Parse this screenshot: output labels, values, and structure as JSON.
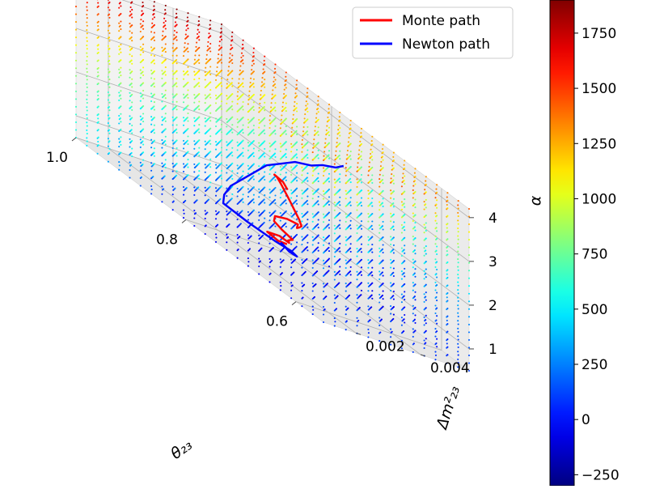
{
  "chart_data": {
    "type": "scatter",
    "projection": "3d",
    "title": "",
    "axes": {
      "x": {
        "label": "θ₂₃",
        "range": [
          0.55,
          1.0
        ],
        "ticks": [
          "0.6",
          "0.8",
          "1.0"
        ],
        "tick_values": [
          0.6,
          0.8,
          1.0
        ]
      },
      "y": {
        "label": "Δm²₂₃",
        "range": [
          0.001,
          0.0055
        ],
        "ticks": [
          "0.002",
          "0.004"
        ],
        "tick_values": [
          0.002,
          0.004
        ]
      },
      "z": {
        "label": "α",
        "range": [
          0.5,
          4.2
        ],
        "ticks": [
          "1",
          "2",
          "3",
          "4"
        ],
        "tick_values": [
          1,
          2,
          3,
          4
        ]
      }
    },
    "grid": true,
    "colorbar": {
      "colormap": "jet",
      "range": [
        -300,
        1900
      ],
      "ticks": [
        "−250",
        "0",
        "250",
        "500",
        "750",
        "1000",
        "1250",
        "1500",
        "1750"
      ],
      "tick_values": [
        -250,
        0,
        250,
        500,
        750,
        1000,
        1250,
        1500,
        1750
      ]
    },
    "legend": {
      "placement": "top-right",
      "entries": [
        {
          "label": "Monte path",
          "color": "#ff0000"
        },
        {
          "label": "Newton path",
          "color": "#0000ff"
        }
      ]
    },
    "scatter_grid": {
      "x_range": [
        0.55,
        1.0
      ],
      "y_range": [
        0.001,
        0.0055
      ],
      "z_range": [
        0.5,
        4.2
      ],
      "value_min": -80,
      "value_max": 1900
    },
    "series": [
      {
        "name": "Monte path",
        "color": "#ff0000",
        "points": [
          [
            0.74,
            0.0031,
            1.02
          ],
          [
            0.75,
            0.003,
            0.98
          ],
          [
            0.77,
            0.003,
            1.0
          ],
          [
            0.76,
            0.0032,
            1.05
          ],
          [
            0.73,
            0.003,
            1.12
          ],
          [
            0.72,
            0.0028,
            1.22
          ],
          [
            0.71,
            0.0027,
            1.3
          ],
          [
            0.7,
            0.0026,
            1.37
          ],
          [
            0.72,
            0.0026,
            1.42
          ],
          [
            0.74,
            0.0027,
            1.45
          ],
          [
            0.75,
            0.0029,
            1.52
          ],
          [
            0.74,
            0.0031,
            1.6
          ],
          [
            0.72,
            0.0031,
            1.66
          ],
          [
            0.71,
            0.0029,
            1.62
          ],
          [
            0.7,
            0.0028,
            1.7
          ],
          [
            0.69,
            0.0027,
            1.8
          ],
          [
            0.7,
            0.0028,
            1.88
          ],
          [
            0.72,
            0.003,
            1.95
          ],
          [
            0.74,
            0.0032,
            2.02
          ],
          [
            0.76,
            0.0034,
            2.08
          ],
          [
            0.78,
            0.0036,
            2.14
          ],
          [
            0.8,
            0.0038,
            2.18
          ],
          [
            0.81,
            0.0039,
            2.15
          ],
          [
            0.8,
            0.004,
            2.1
          ],
          [
            0.78,
            0.0038,
            2.06
          ]
        ]
      },
      {
        "name": "Newton path",
        "color": "#0000ff",
        "points": [
          [
            0.69,
            0.004,
            3.5
          ],
          [
            0.71,
            0.0041,
            3.3
          ],
          [
            0.74,
            0.0042,
            3.1
          ],
          [
            0.76,
            0.0042,
            2.9
          ],
          [
            0.79,
            0.0042,
            2.7
          ],
          [
            0.81,
            0.0041,
            2.45
          ],
          [
            0.83,
            0.004,
            2.2
          ],
          [
            0.84,
            0.0038,
            1.9
          ],
          [
            0.85,
            0.0036,
            1.6
          ],
          [
            0.86,
            0.0034,
            1.3
          ],
          [
            0.86,
            0.0032,
            1.05
          ],
          [
            0.85,
            0.003,
            0.9
          ],
          [
            0.8,
            0.0029,
            0.92
          ],
          [
            0.75,
            0.0029,
            0.95
          ],
          [
            0.72,
            0.0029,
            1.0
          ],
          [
            0.71,
            0.0029,
            0.97
          ],
          [
            0.73,
            0.003,
            0.92
          ],
          [
            0.75,
            0.0031,
            0.95
          ],
          [
            0.74,
            0.0031,
            0.92
          ]
        ]
      }
    ]
  }
}
